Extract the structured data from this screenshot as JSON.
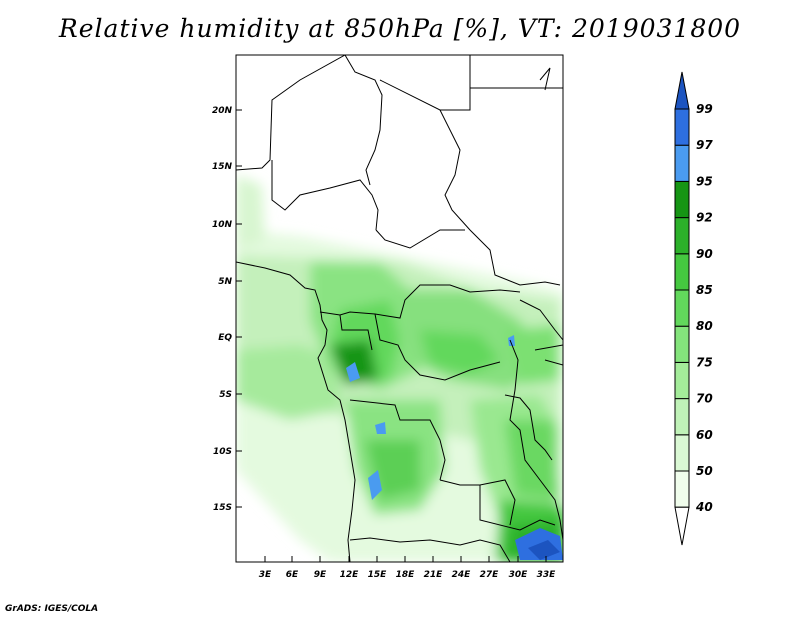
{
  "title": "Relative humidity at 850hPa [%], VT: 2019031800",
  "footer": "GrADS: IGES/COLA",
  "map": {
    "lat_labels": [
      "20N",
      "15N",
      "10N",
      "5N",
      "EQ",
      "5S",
      "10S",
      "15S"
    ],
    "lon_labels": [
      "3E",
      "6E",
      "9E",
      "12E",
      "15E",
      "18E",
      "21E",
      "24E",
      "27E",
      "30E",
      "33E"
    ]
  },
  "colorbar": {
    "levels": [
      "40",
      "50",
      "60",
      "70",
      "75",
      "80",
      "85",
      "90",
      "92",
      "95",
      "97",
      "99"
    ],
    "colors": [
      "#f0fdec",
      "#daf8d4",
      "#c0f2b8",
      "#a4ec9a",
      "#84e47c",
      "#62d85c",
      "#45c840",
      "#2cb12a",
      "#169514",
      "#4a9bf0",
      "#2e6fe0",
      "#1c54c0"
    ],
    "under_color": "#ffffff"
  }
}
